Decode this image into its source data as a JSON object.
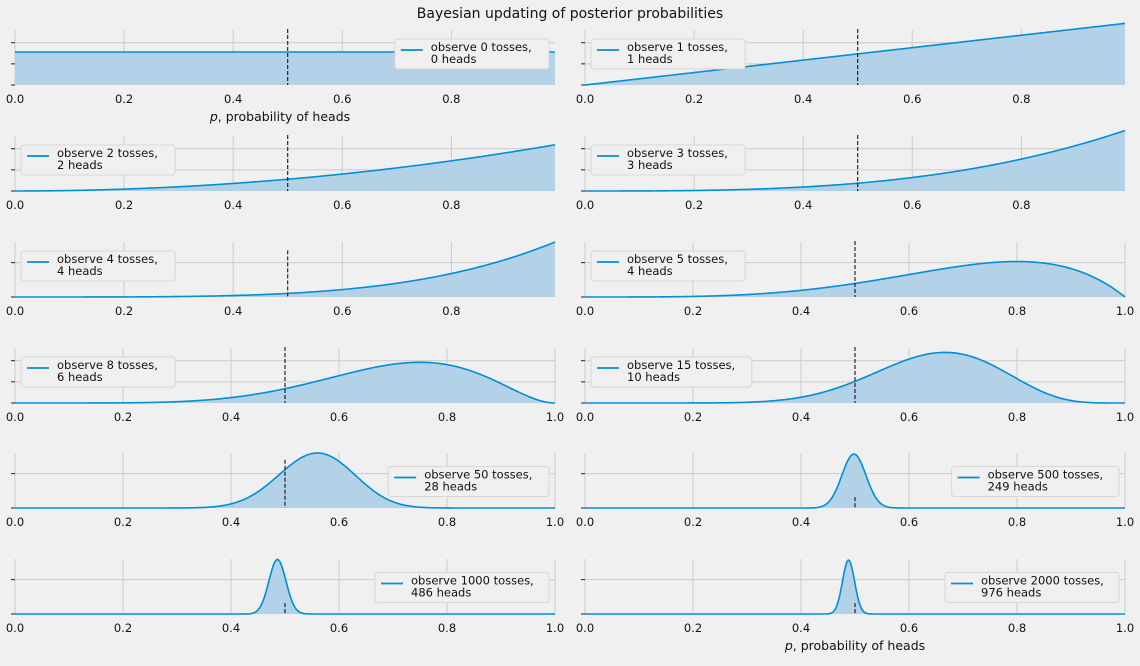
{
  "figure": {
    "title": "Bayesian updating of posterior probabilities",
    "xlabel_prefix": "p",
    "xlabel_suffix": ", probability of heads"
  },
  "chart_data": [
    {
      "type": "area",
      "n": 0,
      "heads": 0,
      "legend_line1": "observe 0 tosses,",
      "legend_line2": " 0 heads",
      "legend_loc": "upper-right",
      "xlim": [
        0,
        0.99
      ],
      "xticks": [
        "0.0",
        "0.2",
        "0.4",
        "0.6",
        "0.8"
      ],
      "yticks": 3,
      "ylim": [
        0,
        1.2
      ],
      "peak": 0.6,
      "show_xlabel": true,
      "vline_top": 1.0
    },
    {
      "type": "area",
      "n": 1,
      "heads": 1,
      "legend_line1": "observe 1 tosses,",
      "legend_line2": " 1 heads",
      "legend_loc": "upper-left",
      "xlim": [
        0,
        0.99
      ],
      "xticks": [
        "0.0",
        "0.2",
        "0.4",
        "0.6",
        "0.8"
      ],
      "yticks": 3,
      "ylim": [
        0,
        2.2
      ],
      "peak": 1.12,
      "show_xlabel": false,
      "vline_top": 1.0
    },
    {
      "type": "area",
      "n": 2,
      "heads": 2,
      "legend_line1": "observe 2 tosses,",
      "legend_line2": " 2 heads",
      "legend_loc": "upper-left",
      "xlim": [
        0,
        0.99
      ],
      "xticks": [
        "0.0",
        "0.2",
        "0.4",
        "0.6",
        "0.8"
      ],
      "yticks": 3,
      "ylim": [
        0,
        2.2
      ],
      "peak": 0.84,
      "show_xlabel": false,
      "vline_top": 1.0
    },
    {
      "type": "area",
      "n": 3,
      "heads": 3,
      "legend_line1": "observe 3 tosses,",
      "legend_line2": " 3 heads",
      "legend_loc": "upper-left",
      "xlim": [
        0,
        0.99
      ],
      "xticks": [
        "0.0",
        "0.2",
        "0.4",
        "0.6",
        "0.8"
      ],
      "yticks": 3,
      "ylim": [
        0,
        2.2
      ],
      "peak": 1.1,
      "show_xlabel": false,
      "vline_top": 1.0
    },
    {
      "type": "area",
      "n": 4,
      "heads": 4,
      "legend_line1": "observe 4 tosses,",
      "legend_line2": " 4 heads",
      "legend_loc": "upper-left",
      "xlim": [
        0,
        0.99
      ],
      "xticks": [
        "0.0",
        "0.2",
        "0.4",
        "0.6",
        "0.8"
      ],
      "yticks": 2,
      "ylim": [
        0,
        2.2
      ],
      "peak": 1.0,
      "show_xlabel": false,
      "vline_top": 0.83
    },
    {
      "type": "area",
      "n": 5,
      "heads": 4,
      "legend_line1": "observe 5 tosses,",
      "legend_line2": " 4 heads",
      "legend_loc": "upper-left",
      "xlim": [
        0,
        1.0
      ],
      "xticks": [
        "0.0",
        "0.2",
        "0.4",
        "0.6",
        "0.8",
        "1.0"
      ],
      "yticks": 2,
      "ylim": [
        0,
        2.2
      ],
      "peak": 0.645,
      "show_xlabel": false,
      "vline_top": 1.0
    },
    {
      "type": "area",
      "n": 8,
      "heads": 6,
      "legend_line1": "observe 8 tosses,",
      "legend_line2": " 6 heads",
      "legend_loc": "upper-left",
      "xlim": [
        0,
        1.0
      ],
      "xticks": [
        "0.0",
        "0.2",
        "0.4",
        "0.6",
        "0.8",
        "1.0"
      ],
      "yticks": 3,
      "ylim": [
        0,
        2.2
      ],
      "peak": 0.74,
      "show_xlabel": false,
      "vline_top": 1.0
    },
    {
      "type": "area",
      "n": 15,
      "heads": 10,
      "legend_line1": "observe 15 tosses,",
      "legend_line2": " 10 heads",
      "legend_loc": "upper-left",
      "xlim": [
        0,
        1.0
      ],
      "xticks": [
        "0.0",
        "0.2",
        "0.4",
        "0.6",
        "0.8",
        "1.0"
      ],
      "yticks": 3,
      "ylim": [
        0,
        2.2
      ],
      "peak": 0.92,
      "show_xlabel": false,
      "vline_top": 1.0
    },
    {
      "type": "area",
      "n": 50,
      "heads": 28,
      "legend_line1": "observe 50 tosses,",
      "legend_line2": " 28 heads",
      "legend_loc": "center-right",
      "xlim": [
        0,
        1.0
      ],
      "xticks": [
        "0.0",
        "0.2",
        "0.4",
        "0.6",
        "0.8",
        "1.0"
      ],
      "yticks": 2,
      "ylim": [
        0,
        6.2
      ],
      "peak": 1.0,
      "show_xlabel": false,
      "vline_top": 0.86
    },
    {
      "type": "area",
      "n": 500,
      "heads": 249,
      "legend_line1": "observe 500 tosses,",
      "legend_line2": " 249 heads",
      "legend_loc": "center-right",
      "xlim": [
        0,
        1.0
      ],
      "xticks": [
        "0.0",
        "0.2",
        "0.4",
        "0.6",
        "0.8",
        "1.0"
      ],
      "yticks": 2,
      "ylim": [
        0,
        20
      ],
      "peak": 0.98,
      "show_xlabel": false,
      "vline_top": 0.18
    },
    {
      "type": "area",
      "n": 1000,
      "heads": 486,
      "legend_line1": "observe 1000 tosses,",
      "legend_line2": " 486 heads",
      "legend_loc": "center-right",
      "xlim": [
        0,
        1.0
      ],
      "xticks": [
        "0.0",
        "0.2",
        "0.4",
        "0.6",
        "0.8",
        "1.0"
      ],
      "yticks": 2,
      "ylim": [
        0,
        26
      ],
      "peak": 0.99,
      "show_xlabel": false,
      "vline_top": 0.18
    },
    {
      "type": "area",
      "n": 2000,
      "heads": 976,
      "legend_line1": "observe 2000 tosses,",
      "legend_line2": " 976 heads",
      "legend_loc": "center-right",
      "xlim": [
        0,
        1.0
      ],
      "xticks": [
        "0.0",
        "0.2",
        "0.4",
        "0.6",
        "0.8",
        "1.0"
      ],
      "yticks": 2,
      "ylim": [
        0,
        36
      ],
      "peak": 0.98,
      "show_xlabel": true,
      "vline_top": 0.18
    }
  ],
  "colors": {
    "line": "#008fd5",
    "fill": "#b3d1e7",
    "grid": "#cbcbcb",
    "bg": "#f0f0f0",
    "vline": "#000000",
    "text": "#111111"
  }
}
